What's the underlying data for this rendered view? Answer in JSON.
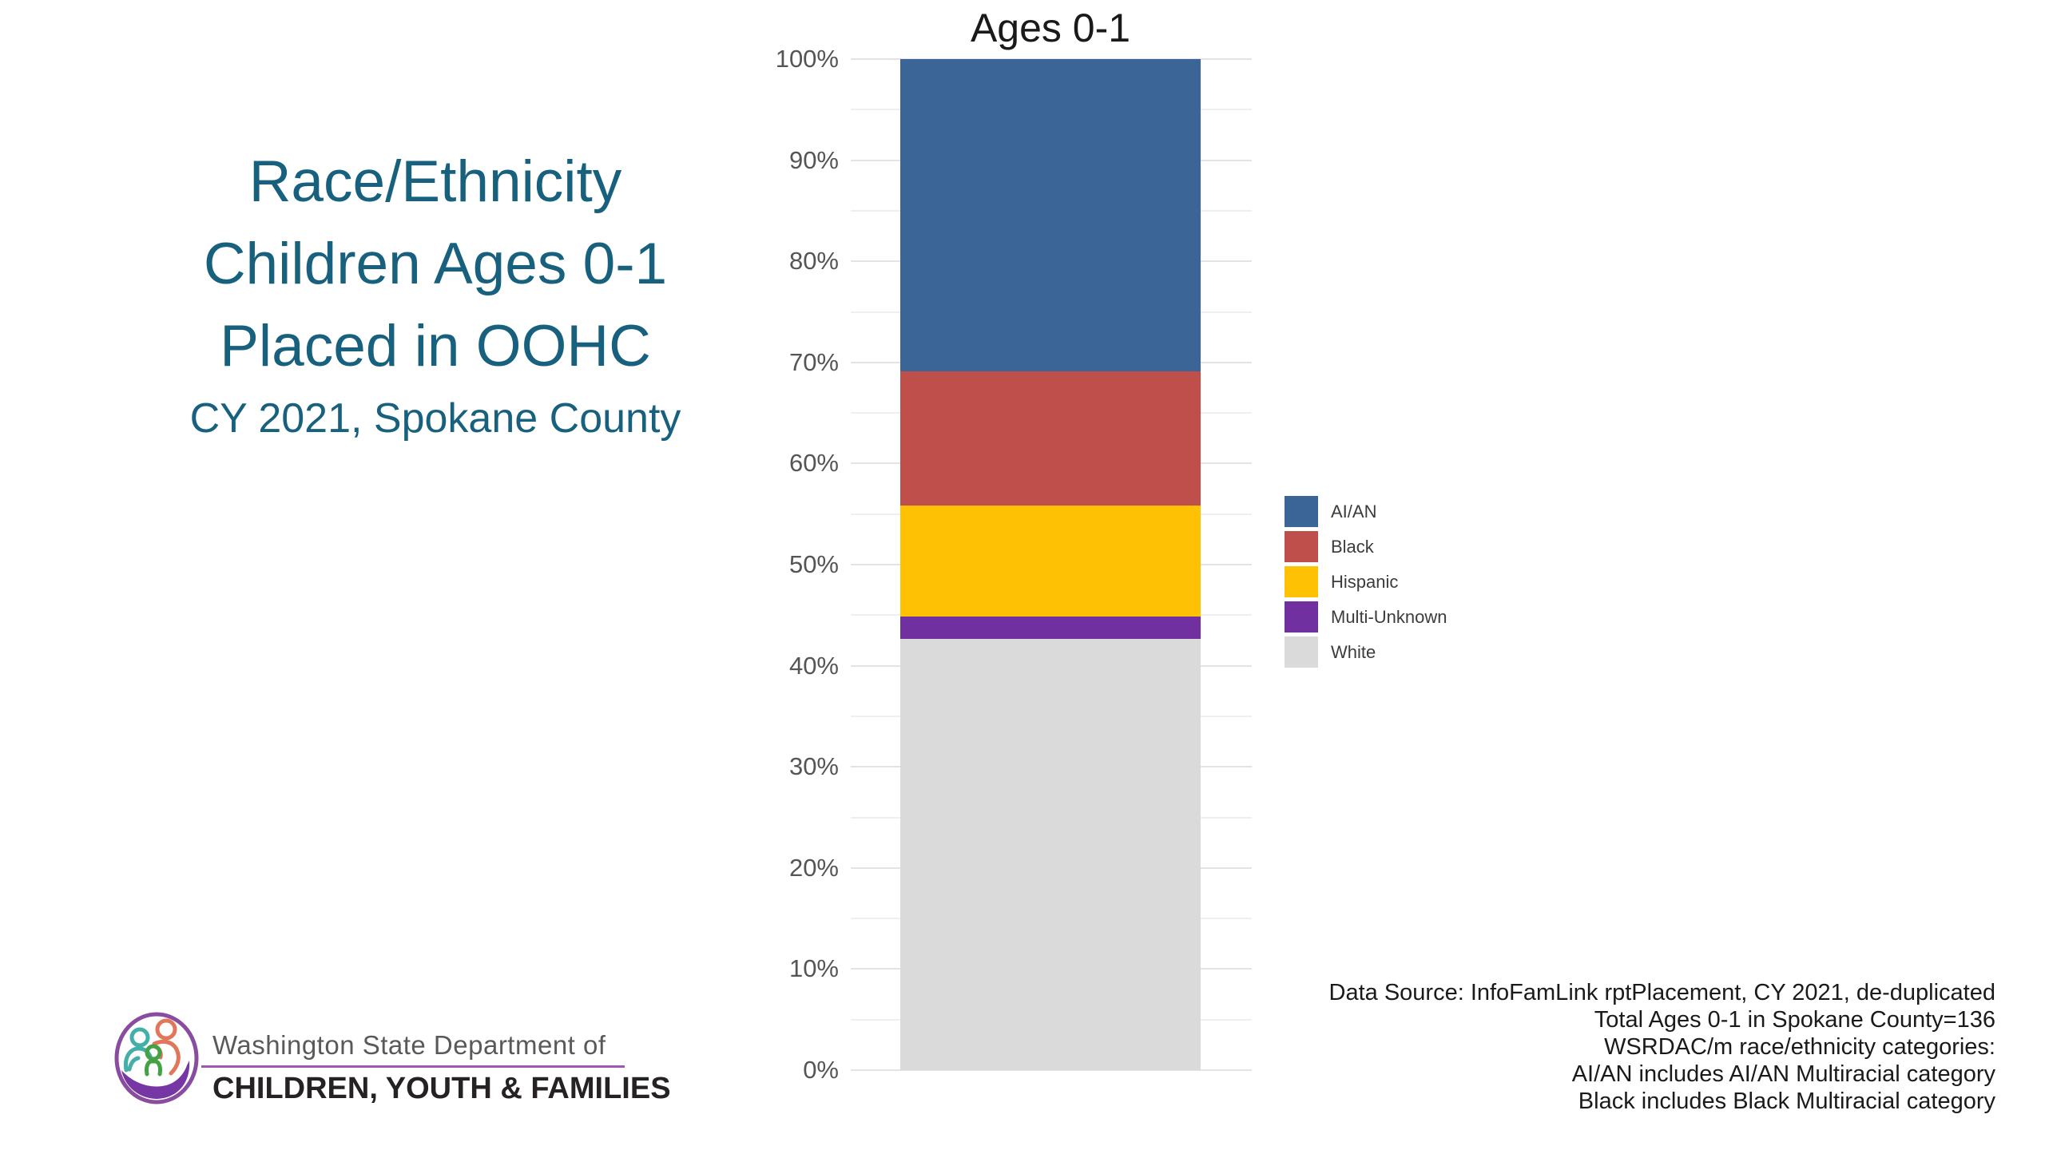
{
  "headline": {
    "lines": [
      "Race/Ethnicity",
      "Children Ages 0-1",
      "Placed in OOHC"
    ],
    "subtitle": "CY 2021, Spokane County",
    "color": "#18617E"
  },
  "chart_data": {
    "type": "bar",
    "stacked": true,
    "title": "Ages 0-1",
    "categories": [
      "Ages 0-1"
    ],
    "series": [
      {
        "name": "AI/AN",
        "color": "#3B6596",
        "values": [
          30.9
        ]
      },
      {
        "name": "Black",
        "color": "#BF4F4B",
        "values": [
          13.2
        ]
      },
      {
        "name": "Hispanic",
        "color": "#FFC103",
        "values": [
          11.0
        ]
      },
      {
        "name": "Multi-Unknown",
        "color": "#7030A0",
        "values": [
          2.2
        ]
      },
      {
        "name": "White",
        "color": "#DADADA",
        "values": [
          42.6
        ]
      }
    ],
    "stack_order_top_to_bottom": [
      "AI/AN",
      "Black",
      "Hispanic",
      "Multi-Unknown",
      "White"
    ],
    "xlabel": "",
    "ylabel": "",
    "ylim": [
      0,
      100
    ],
    "y_tick_labels": [
      "100%",
      "90%",
      "80%",
      "70%",
      "60%",
      "50%",
      "40%",
      "30%",
      "20%",
      "10%",
      "0%"
    ],
    "y_tick_values": [
      100,
      90,
      80,
      70,
      60,
      50,
      40,
      30,
      20,
      10,
      0
    ],
    "gridlines": {
      "major_every_pct": 10,
      "minor_every_pct": 5
    },
    "legend_position": "right"
  },
  "legend": {
    "items": [
      {
        "label": "AI/AN",
        "color": "#3B6596"
      },
      {
        "label": "Black",
        "color": "#BF4F4B"
      },
      {
        "label": "Hispanic",
        "color": "#FFC103"
      },
      {
        "label": "Multi-Unknown",
        "color": "#7030A0"
      },
      {
        "label": "White",
        "color": "#DADADA"
      }
    ]
  },
  "source_note": {
    "lines": [
      "Data Source: InfoFamLink rptPlacement, CY 2021, de-duplicated",
      "Total Ages 0-1 in Spokane County=136",
      "WSRDAC/m race/ethnicity categories:",
      "AI/AN includes AI/AN Multiracial category",
      "Black includes Black Multiracial category"
    ]
  },
  "logo": {
    "line1": "Washington State Department of",
    "line2": "CHILDREN, YOUTH & FAMILIES",
    "colors": {
      "ring": "#8A4C9F",
      "swoosh": "#7636A4",
      "adult_left": "#43AFA9",
      "adult_right": "#E2765B",
      "child": "#43A146",
      "rule": "#A156B4"
    }
  }
}
